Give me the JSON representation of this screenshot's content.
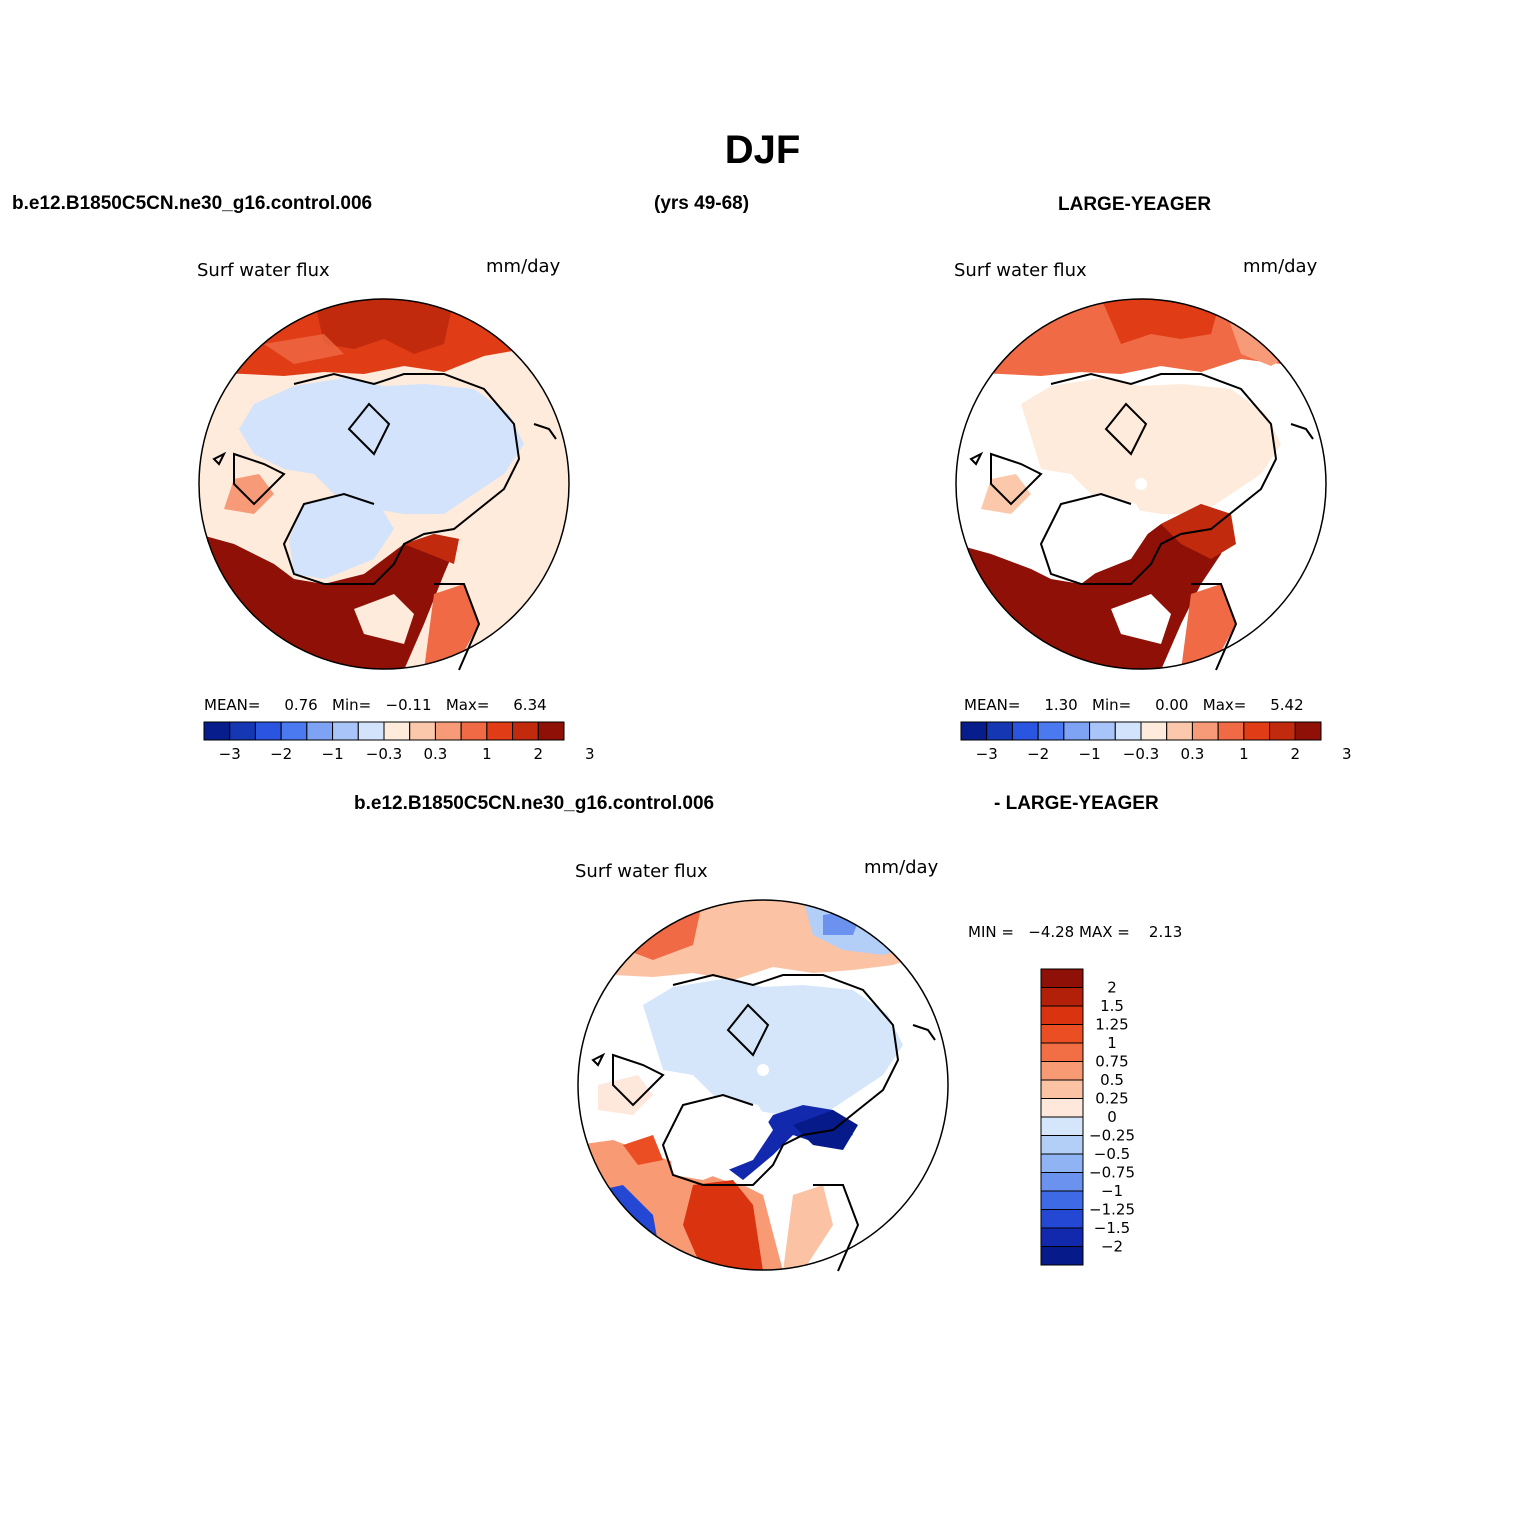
{
  "figure": {
    "title": "DJF",
    "case_label": "b.e12.B1850C5CN.ne30_g16.control.006",
    "years_label": "(yrs 49-68)",
    "obs_label": "LARGE-YEAGER",
    "diff_case_label": "b.e12.B1850C5CN.ne30_g16.control.006",
    "diff_obs_label": "- LARGE-YEAGER"
  },
  "panels": [
    {
      "id": "model",
      "variable": "Surf water flux",
      "units": "mm/day",
      "stats": {
        "mean_label": "MEAN=",
        "mean": "0.76",
        "min_label": "Min=",
        "min": "−0.11",
        "max_label": "Max=",
        "max": "6.34"
      },
      "colorbar": {
        "colors": [
          "#081d8c",
          "#1537b4",
          "#2a55e0",
          "#4a79f0",
          "#7ea3f5",
          "#a9c4f8",
          "#d2e3fb",
          "#feebdc",
          "#fcc8ac",
          "#f79a78",
          "#ef6a45",
          "#e03d17",
          "#c22a0d",
          "#8e1006"
        ],
        "ticks": [
          "−3",
          "−2",
          "−1",
          "−0.3",
          "0.3",
          "1",
          "2",
          "3"
        ]
      }
    },
    {
      "id": "obs",
      "variable": "Surf water flux",
      "units": "mm/day",
      "stats": {
        "mean_label": "MEAN=",
        "mean": "1.30",
        "min_label": "Min=",
        "min": "0.00",
        "max_label": "Max=",
        "max": "5.42"
      },
      "colorbar": {
        "colors": [
          "#081d8c",
          "#1537b4",
          "#2a55e0",
          "#4a79f0",
          "#7ea3f5",
          "#a9c4f8",
          "#d2e3fb",
          "#feebdc",
          "#fcc8ac",
          "#f79a78",
          "#ef6a45",
          "#e03d17",
          "#c22a0d",
          "#8e1006"
        ],
        "ticks": [
          "−3",
          "−2",
          "−1",
          "−0.3",
          "0.3",
          "1",
          "2",
          "3"
        ]
      }
    },
    {
      "id": "diff",
      "variable": "Surf water flux",
      "units": "mm/day",
      "stats": {
        "min_label": "MIN =",
        "min": "−4.28",
        "max_label": "MAX =",
        "max": "2.13"
      },
      "colorbar": {
        "colors": [
          "#8e1006",
          "#b3200a",
          "#d9340f",
          "#ea4e22",
          "#f26f45",
          "#f89a74",
          "#fbc2a4",
          "#fee7db",
          "#d5e6fb",
          "#b3cff8",
          "#8fb3f3",
          "#6a92ee",
          "#3f6ae6",
          "#2447d4",
          "#1229ad",
          "#061a8a"
        ],
        "ticks": [
          "2",
          "1.5",
          "1.25",
          "1",
          "0.75",
          "0.5",
          "0.25",
          "0",
          "−0.25",
          "−0.5",
          "−0.75",
          "−1",
          "−1.25",
          "−1.5",
          "−2"
        ]
      }
    }
  ]
}
